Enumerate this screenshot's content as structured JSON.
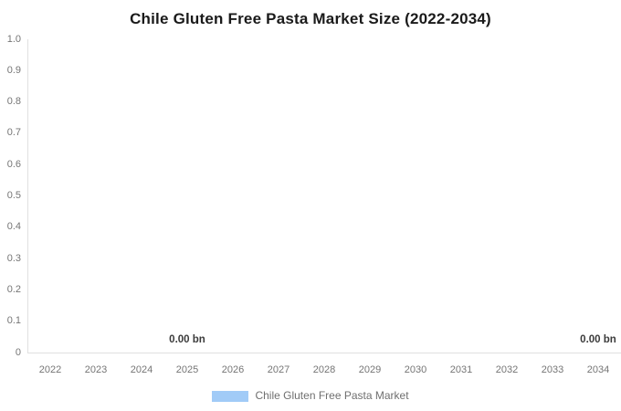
{
  "title": "Chile Gluten Free Pasta Market Size (2022-2034)",
  "chart_data": {
    "type": "bar",
    "title": "Chile Gluten Free Pasta Market Size (2022-2034)",
    "categories": [
      "2022",
      "2023",
      "2024",
      "2025",
      "2026",
      "2027",
      "2028",
      "2029",
      "2030",
      "2031",
      "2032",
      "2033",
      "2034"
    ],
    "series": [
      {
        "name": "Chile Gluten Free Pasta Market",
        "values": [
          0,
          0,
          0,
          0,
          0,
          0,
          0,
          0,
          0,
          0,
          0,
          0,
          0
        ],
        "unit": "bn",
        "color": "#a1cbf7"
      }
    ],
    "y_ticks": [
      "1.0",
      "0.9",
      "0.8",
      "0.7",
      "0.6",
      "0.5",
      "0.4",
      "0.3",
      "0.2",
      "0.1",
      "0"
    ],
    "ylim": [
      0,
      1.0
    ],
    "xlabel": "",
    "ylabel": "",
    "grid": false,
    "data_labels": [
      {
        "category": "2025",
        "text": "0.00 bn"
      },
      {
        "category": "2034",
        "text": "0.00 bn"
      }
    ],
    "legend": {
      "position": "bottom",
      "entries": [
        {
          "label": "Chile Gluten Free Pasta Market",
          "color": "#a1cbf7"
        }
      ]
    }
  },
  "colors": {
    "background": "#ffffff",
    "title": "#1a1a1a",
    "tick_label": "#757575",
    "value_label": "#3b3b3b",
    "axis_line": "#e0e0e0",
    "series": "#a1cbf7",
    "legend_text": "#6f6f6f"
  }
}
